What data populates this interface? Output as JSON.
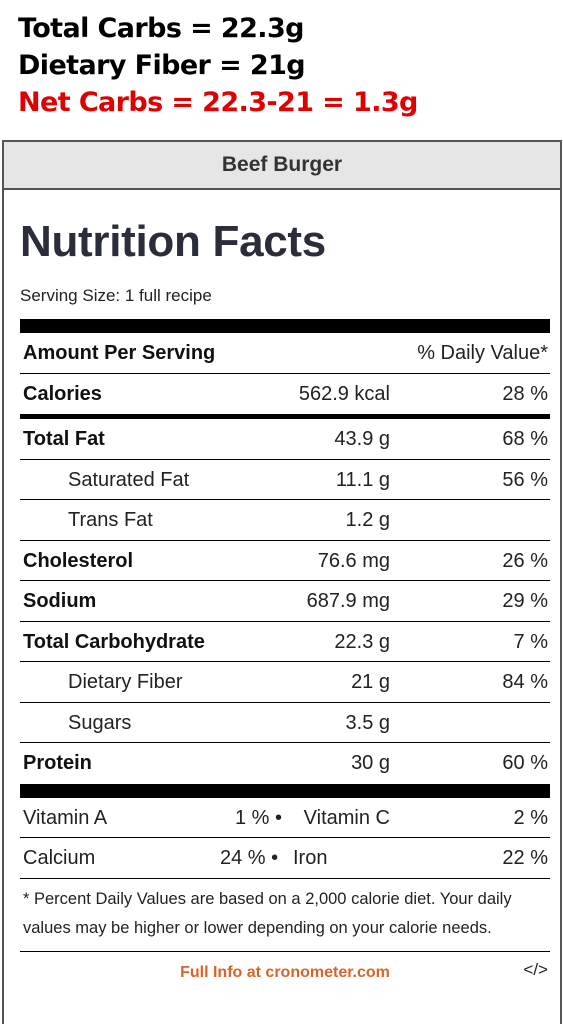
{
  "notes": {
    "total_carbs": "Total Carbs = 22.3g",
    "dietary_fiber": "Dietary Fiber = 21g",
    "net_carbs": "Net Carbs = 22.3-21 = 1.3g",
    "net_carbs_color": "#e00000"
  },
  "label": {
    "recipe_name": "Beef Burger",
    "title": "Nutrition Facts",
    "serving_size": "Serving Size: 1 full recipe",
    "header": {
      "left": "Amount Per Serving",
      "right": "% Daily Value*"
    },
    "calories": {
      "name": "Calories",
      "amount": "562.9 kcal",
      "pct": "28 %"
    },
    "rows": [
      {
        "name": "Total Fat",
        "amount": "43.9 g",
        "pct": "68 %"
      },
      {
        "name": "Saturated Fat",
        "amount": "11.1 g",
        "pct": "56 %"
      },
      {
        "name": "Trans Fat",
        "amount": "1.2 g",
        "pct": ""
      },
      {
        "name": "Cholesterol",
        "amount": "76.6 mg",
        "pct": "26 %"
      },
      {
        "name": "Sodium",
        "amount": "687.9 mg",
        "pct": "29 %"
      },
      {
        "name": "Total Carbohydrate",
        "amount": "22.3 g",
        "pct": "7 %"
      },
      {
        "name": "Dietary Fiber",
        "amount": "21 g",
        "pct": "84 %"
      },
      {
        "name": "Sugars",
        "amount": "3.5 g",
        "pct": ""
      },
      {
        "name": "Protein",
        "amount": "30 g",
        "pct": "60 %"
      }
    ],
    "vitamins": [
      {
        "left_name": "Vitamin A",
        "left_pct": "1 % •",
        "right_name": "Vitamin C",
        "right_pct": "2 %"
      },
      {
        "left_name": "Calcium",
        "left_pct": "24 % •",
        "right_name": "Iron",
        "right_pct": "22 %"
      }
    ],
    "footnote": "* Percent Daily Values are based on a 2,000 calorie diet. Your daily values may be higher or lower depending on your calorie needs.",
    "full_info_link": "Full Info at cronometer.com",
    "embed_icon": "</>",
    "link_color": "#d9642a"
  }
}
